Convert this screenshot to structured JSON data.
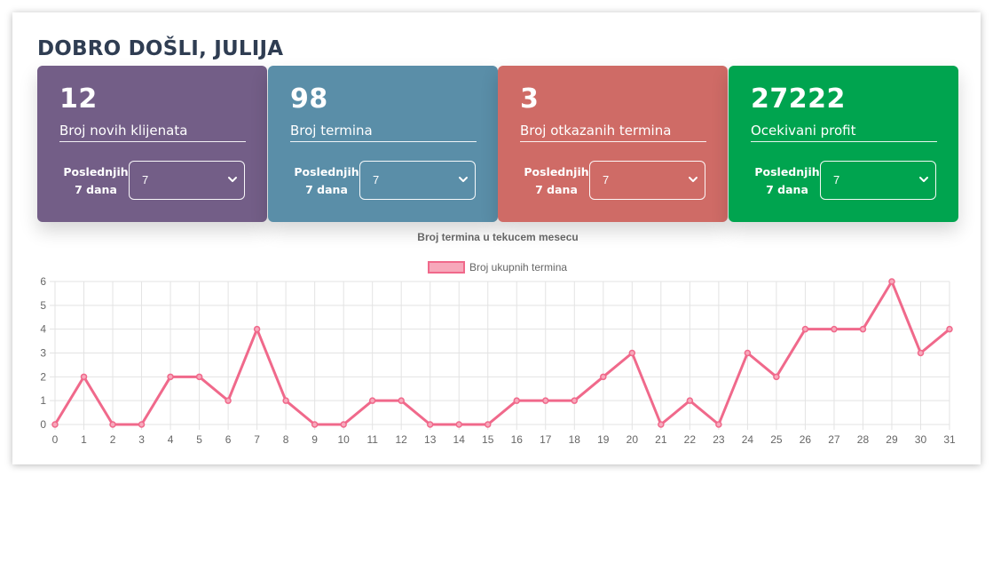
{
  "header": {
    "greeting": "DOBRO DOŠLI, JULIJA"
  },
  "cards": [
    {
      "value": "12",
      "label": "Broj novih klijenata",
      "period_line1": "Poslednjih",
      "period_line2": "7 dana",
      "select_value": "7",
      "color": "#735e87"
    },
    {
      "value": "98",
      "label": "Broj termina",
      "period_line1": "Poslednjih",
      "period_line2": "7 dana",
      "select_value": "7",
      "color": "#5a8ea8"
    },
    {
      "value": "3",
      "label": "Broj otkazanih termina",
      "period_line1": "Poslednjih",
      "period_line2": "7 dana",
      "select_value": "7",
      "color": "#cf6b66"
    },
    {
      "value": "27222",
      "label": "Ocekivani profit",
      "period_line1": "Poslednjih",
      "period_line2": "7 dana",
      "select_value": "7",
      "color": "#00a44f"
    }
  ],
  "icons": {
    "select_arrow": "chevron-down-icon"
  },
  "chart_data": {
    "type": "line",
    "title": "Broj termina u tekucem mesecu",
    "legend_position": "top",
    "grid": true,
    "x": [
      0,
      1,
      2,
      3,
      4,
      5,
      6,
      7,
      8,
      9,
      10,
      11,
      12,
      13,
      14,
      15,
      16,
      17,
      18,
      19,
      20,
      21,
      22,
      23,
      24,
      25,
      26,
      27,
      28,
      29,
      30,
      31
    ],
    "series": [
      {
        "name": "Broj ukupnih termina",
        "color": "#f0698b",
        "values": [
          0,
          2,
          0,
          0,
          2,
          2,
          1,
          4,
          1,
          0,
          0,
          1,
          1,
          0,
          0,
          0,
          1,
          1,
          1,
          2,
          3,
          0,
          1,
          0,
          3,
          2,
          4,
          4,
          4,
          6,
          3,
          4
        ]
      }
    ],
    "xlim": [
      0,
      31
    ],
    "ylim": [
      0,
      6
    ],
    "yticks": [
      0,
      1,
      2,
      3,
      4,
      5,
      6
    ]
  }
}
